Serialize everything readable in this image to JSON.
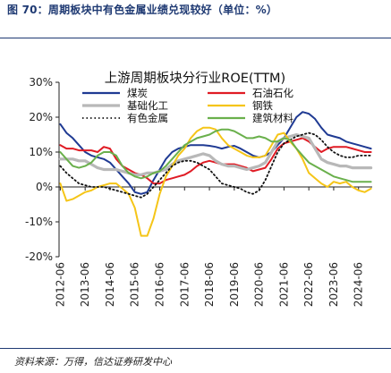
{
  "figure": {
    "title": "图 70：周期板块中有色金属业绩兑现较好（单位：%）",
    "source": "资料来源：万得，信达证券研发中心"
  },
  "chart_data": {
    "type": "line",
    "title": "上游周期板块分行业ROE(TTM)",
    "xlabel": "",
    "ylabel": "",
    "ylim": [
      -20,
      30
    ],
    "xlim": [
      2012.45,
      2025.05
    ],
    "y_ticks": [
      "30%",
      "20%",
      "10%",
      "0%",
      "-10%",
      "-20%"
    ],
    "y_tick_values": [
      30,
      20,
      10,
      0,
      -10,
      -20
    ],
    "x_ticks": [
      "2012-06",
      "2013-06",
      "2014-06",
      "2015-06",
      "2016-06",
      "2017-06",
      "2018-06",
      "2019-06",
      "2020-06",
      "2021-06",
      "2022-06",
      "2023-06",
      "2024-06"
    ],
    "x_tick_values": [
      2012.5,
      2013.5,
      2014.5,
      2015.5,
      2016.5,
      2017.5,
      2018.5,
      2019.5,
      2020.5,
      2021.5,
      2022.5,
      2023.5,
      2024.5
    ],
    "grid": false,
    "legend_position": "top",
    "series": [
      {
        "name": "煤炭",
        "color": "#1f3a93",
        "style": "solid",
        "x": [
          2012.5,
          2012.75,
          2013.0,
          2013.25,
          2013.5,
          2013.75,
          2014.0,
          2014.25,
          2014.5,
          2014.75,
          2015.0,
          2015.25,
          2015.5,
          2015.75,
          2016.0,
          2016.25,
          2016.5,
          2016.75,
          2017.0,
          2017.25,
          2017.5,
          2017.75,
          2018.0,
          2018.25,
          2018.5,
          2018.75,
          2019.0,
          2019.25,
          2019.5,
          2019.75,
          2020.0,
          2020.25,
          2020.5,
          2020.75,
          2021.0,
          2021.25,
          2021.5,
          2021.75,
          2022.0,
          2022.25,
          2022.5,
          2022.75,
          2023.0,
          2023.25,
          2023.5,
          2023.75,
          2024.0,
          2024.25,
          2024.5,
          2024.75,
          2025.0
        ],
        "y": [
          18,
          15.5,
          14,
          12,
          10,
          9,
          8.5,
          8,
          7,
          5,
          3,
          1,
          -1.5,
          -2,
          -1.5,
          2,
          5,
          8,
          10,
          11,
          11.5,
          12,
          12,
          12,
          11.8,
          11.5,
          11,
          11.5,
          11.8,
          11,
          10,
          9,
          8.5,
          9,
          10,
          12,
          14,
          17,
          20,
          21.5,
          21,
          19.5,
          17,
          15,
          14.5,
          14,
          13,
          12.5,
          12,
          11.5,
          11
        ]
      },
      {
        "name": "石油石化",
        "color": "#e01b24",
        "style": "solid",
        "x": [
          2012.5,
          2012.75,
          2013.0,
          2013.25,
          2013.5,
          2013.75,
          2014.0,
          2014.25,
          2014.5,
          2014.75,
          2015.0,
          2015.25,
          2015.5,
          2015.75,
          2016.0,
          2016.25,
          2016.5,
          2016.75,
          2017.0,
          2017.25,
          2017.5,
          2017.75,
          2018.0,
          2018.25,
          2018.5,
          2018.75,
          2019.0,
          2019.25,
          2019.5,
          2019.75,
          2020.0,
          2020.25,
          2020.5,
          2020.75,
          2021.0,
          2021.25,
          2021.5,
          2021.75,
          2022.0,
          2022.25,
          2022.5,
          2022.75,
          2023.0,
          2023.25,
          2023.5,
          2023.75,
          2024.0,
          2024.25,
          2024.5,
          2024.75,
          2025.0
        ],
        "y": [
          12,
          11,
          11,
          10.5,
          10.5,
          10.5,
          10,
          11.5,
          11,
          8,
          6,
          5,
          4,
          3.5,
          2.5,
          1,
          1,
          2,
          2.5,
          3,
          3.5,
          4.5,
          6,
          7,
          7.5,
          7,
          6.5,
          6.5,
          6.5,
          6,
          5.5,
          4.5,
          5,
          5.5,
          8,
          11,
          12.5,
          13,
          13.5,
          14,
          13,
          11.5,
          10,
          11,
          11.5,
          11.5,
          11.5,
          11,
          10.5,
          10,
          10
        ]
      },
      {
        "name": "基础化工",
        "color": "#b8b8b8",
        "style": "solid",
        "x": [
          2012.5,
          2012.75,
          2013.0,
          2013.25,
          2013.5,
          2013.75,
          2014.0,
          2014.25,
          2014.5,
          2014.75,
          2015.0,
          2015.25,
          2015.5,
          2015.75,
          2016.0,
          2016.25,
          2016.5,
          2016.75,
          2017.0,
          2017.25,
          2017.5,
          2017.75,
          2018.0,
          2018.25,
          2018.5,
          2018.75,
          2019.0,
          2019.25,
          2019.5,
          2019.75,
          2020.0,
          2020.25,
          2020.5,
          2020.75,
          2021.0,
          2021.25,
          2021.5,
          2021.75,
          2022.0,
          2022.25,
          2022.5,
          2022.75,
          2023.0,
          2023.25,
          2023.5,
          2023.75,
          2024.0,
          2024.25,
          2024.5,
          2024.75,
          2025.0
        ],
        "y": [
          8,
          8,
          8,
          7.5,
          7.5,
          6.5,
          5.5,
          5,
          5,
          5,
          4.5,
          4,
          3.5,
          3.5,
          4,
          4,
          4.5,
          5,
          6.5,
          7.5,
          8,
          8.5,
          9,
          9.5,
          9,
          7.5,
          6.5,
          6,
          6,
          5.5,
          5,
          5.5,
          6,
          7,
          10,
          13,
          14,
          14.5,
          15,
          14.5,
          14,
          11,
          8,
          7,
          6.5,
          6,
          6,
          5.5,
          5.5,
          5.5,
          5.5
        ]
      },
      {
        "name": "钢铁",
        "color": "#f5c518",
        "style": "solid",
        "x": [
          2012.5,
          2012.75,
          2013.0,
          2013.25,
          2013.5,
          2013.75,
          2014.0,
          2014.25,
          2014.5,
          2014.75,
          2015.0,
          2015.25,
          2015.5,
          2015.75,
          2016.0,
          2016.25,
          2016.5,
          2016.75,
          2017.0,
          2017.25,
          2017.5,
          2017.75,
          2018.0,
          2018.25,
          2018.5,
          2018.75,
          2019.0,
          2019.25,
          2019.5,
          2019.75,
          2020.0,
          2020.25,
          2020.5,
          2020.75,
          2021.0,
          2021.25,
          2021.5,
          2021.75,
          2022.0,
          2022.25,
          2022.5,
          2022.75,
          2023.0,
          2023.25,
          2023.5,
          2023.75,
          2024.0,
          2024.25,
          2024.5,
          2024.75,
          2025.0
        ],
        "y": [
          1,
          -4,
          -3.5,
          -2.5,
          -1.5,
          -1,
          0,
          0.5,
          1,
          1,
          -0.5,
          -2,
          -6,
          -14,
          -14,
          -9,
          -2,
          3,
          6,
          9,
          11,
          14,
          16,
          17,
          17,
          16.5,
          14,
          12,
          11,
          10,
          9,
          8.5,
          8.5,
          9,
          12,
          15,
          15.5,
          13,
          11,
          8,
          4,
          2.5,
          1,
          0,
          1.5,
          1,
          1.5,
          0,
          -1,
          -1.5,
          -0.5
        ]
      },
      {
        "name": "有色金属",
        "color": "#111111",
        "style": "dotted",
        "x": [
          2012.5,
          2012.75,
          2013.0,
          2013.25,
          2013.5,
          2013.75,
          2014.0,
          2014.25,
          2014.5,
          2014.75,
          2015.0,
          2015.25,
          2015.5,
          2015.75,
          2016.0,
          2016.25,
          2016.5,
          2016.75,
          2017.0,
          2017.25,
          2017.5,
          2017.75,
          2018.0,
          2018.25,
          2018.5,
          2018.75,
          2019.0,
          2019.25,
          2019.5,
          2019.75,
          2020.0,
          2020.25,
          2020.5,
          2020.75,
          2021.0,
          2021.25,
          2021.5,
          2021.75,
          2022.0,
          2022.25,
          2022.5,
          2022.75,
          2023.0,
          2023.25,
          2023.5,
          2023.75,
          2024.0,
          2024.25,
          2024.5,
          2024.75,
          2025.0
        ],
        "y": [
          6,
          4,
          2.5,
          1,
          0.5,
          0,
          0,
          0,
          -0.5,
          -1,
          -1.5,
          -2,
          -2.5,
          -3,
          -2,
          0,
          2,
          4,
          6,
          7,
          7.5,
          7.5,
          7,
          6,
          5,
          3,
          1,
          0.5,
          0,
          -0.5,
          -1.5,
          -2,
          -1,
          2,
          6,
          10,
          12.5,
          13.5,
          14.5,
          15,
          15.5,
          15,
          13.5,
          11.5,
          10,
          9,
          8.5,
          8.5,
          9,
          9,
          9
        ]
      },
      {
        "name": "建筑材料",
        "color": "#6ab04c",
        "style": "solid",
        "x": [
          2012.5,
          2012.75,
          2013.0,
          2013.25,
          2013.5,
          2013.75,
          2014.0,
          2014.25,
          2014.5,
          2014.75,
          2015.0,
          2015.25,
          2015.5,
          2015.75,
          2016.0,
          2016.25,
          2016.5,
          2016.75,
          2017.0,
          2017.25,
          2017.5,
          2017.75,
          2018.0,
          2018.25,
          2018.5,
          2018.75,
          2019.0,
          2019.25,
          2019.5,
          2019.75,
          2020.0,
          2020.25,
          2020.5,
          2020.75,
          2021.0,
          2021.25,
          2021.5,
          2021.75,
          2022.0,
          2022.25,
          2022.5,
          2022.75,
          2023.0,
          2023.25,
          2023.5,
          2023.75,
          2024.0,
          2024.25,
          2024.5,
          2024.75,
          2025.0
        ],
        "y": [
          10,
          8,
          6,
          5.5,
          6,
          7,
          9,
          10,
          10,
          9,
          6,
          4,
          3,
          2.5,
          3,
          4,
          4.5,
          6,
          8,
          10,
          12,
          13,
          14,
          14.5,
          15,
          16,
          16.5,
          16.5,
          16,
          15,
          14,
          14,
          14.5,
          14,
          13,
          13,
          14,
          13.5,
          11,
          9,
          7,
          6,
          5,
          4,
          3,
          2.5,
          2,
          1.5,
          1.5,
          1.5,
          1.5
        ]
      }
    ]
  }
}
